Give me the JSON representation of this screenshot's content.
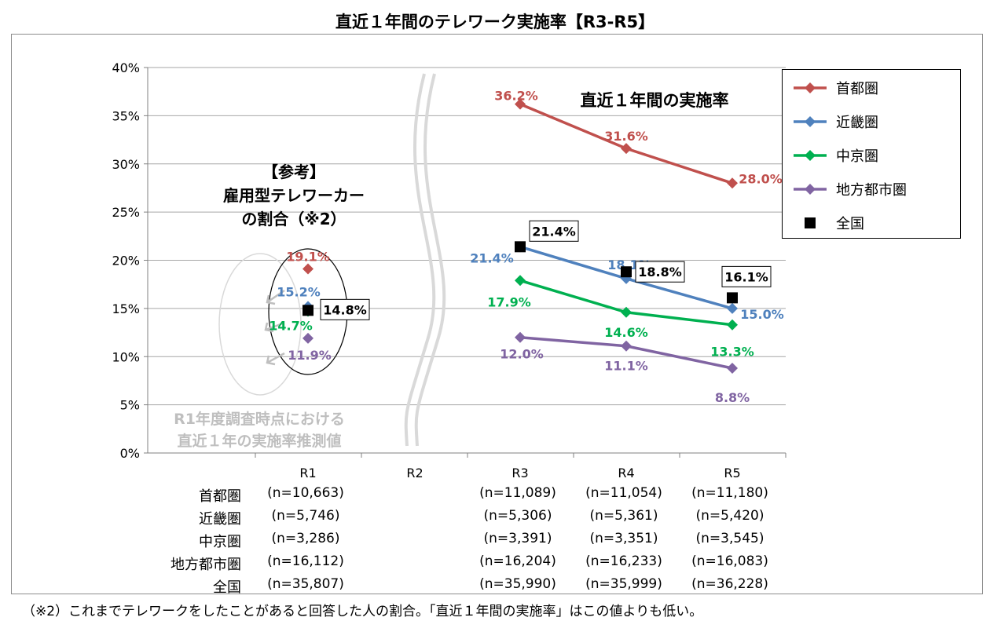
{
  "title": "直近１年間のテレワーク実施率【R3-R5】",
  "chart_data": {
    "type": "line",
    "title": "直近１年間のテレワーク実施率【R3-R5】",
    "categories": [
      "R1",
      "R2",
      "R3",
      "R4",
      "R5"
    ],
    "ylim": [
      0,
      40
    ],
    "yticks": [
      "0%",
      "5%",
      "10%",
      "15%",
      "20%",
      "25%",
      "30%",
      "35%",
      "40%"
    ],
    "series": [
      {
        "name": "首都圏",
        "color": "#c0504d",
        "values": [
          19.1,
          null,
          36.2,
          31.6,
          28.0
        ],
        "labels": [
          "19.1%",
          "",
          "36.2%",
          "31.6%",
          "28.0%"
        ]
      },
      {
        "name": "近畿圏",
        "color": "#4f81bd",
        "values": [
          15.2,
          null,
          21.4,
          18.1,
          15.0
        ],
        "labels": [
          "15.2%",
          "",
          "21.4%",
          "18.1%",
          "15.0%"
        ]
      },
      {
        "name": "中京圏",
        "color": "#00b050",
        "values": [
          14.7,
          null,
          17.9,
          14.6,
          13.3
        ],
        "labels": [
          "14.7%",
          "",
          "17.9%",
          "14.6%",
          "13.3%"
        ]
      },
      {
        "name": "地方都市圏",
        "color": "#8064a2",
        "values": [
          11.9,
          null,
          12.0,
          11.1,
          8.8
        ],
        "labels": [
          "11.9%",
          "",
          "12.0%",
          "11.1%",
          "8.8%"
        ]
      },
      {
        "name": "全国",
        "color": "#000000",
        "values": [
          14.8,
          null,
          21.4,
          18.8,
          16.1
        ],
        "labels": [
          "14.8%",
          "",
          "21.4%",
          "18.8%",
          "16.1%"
        ]
      }
    ],
    "annotations": {
      "series_title": "直近１年間の実施率",
      "reference": [
        "【参考】",
        "雇用型テレワーカー",
        "の割合（※2）"
      ],
      "estimate": [
        "R1年度調査時点における",
        "直近１年の実施率推測値"
      ]
    },
    "legend_position": "top-right",
    "grid": true
  },
  "sample_sizes": {
    "columns": [
      "R1",
      "R2",
      "R3",
      "R4",
      "R5"
    ],
    "rows": [
      {
        "label": "首都圏",
        "values": [
          "(n=10,663)",
          "",
          "(n=11,089)",
          "(n=11,054)",
          "(n=11,180)"
        ]
      },
      {
        "label": "近畿圏",
        "values": [
          "(n=5,746)",
          "",
          "(n=5,306)",
          "(n=5,361)",
          "(n=5,420)"
        ]
      },
      {
        "label": "中京圏",
        "values": [
          "(n=3,286)",
          "",
          "(n=3,391)",
          "(n=3,351)",
          "(n=3,545)"
        ]
      },
      {
        "label": "地方都市圏",
        "values": [
          "(n=16,112)",
          "",
          "(n=16,204)",
          "(n=16,233)",
          "(n=16,083)"
        ]
      },
      {
        "label": "全国",
        "values": [
          "(n=35,807)",
          "",
          "(n=35,990)",
          "(n=35,999)",
          "(n=36,228)"
        ]
      }
    ]
  },
  "footnote": "（※2）これまでテレワークをしたことがあると回答した人の割合。「直近１年間の実施率」はこの値よりも低い。"
}
